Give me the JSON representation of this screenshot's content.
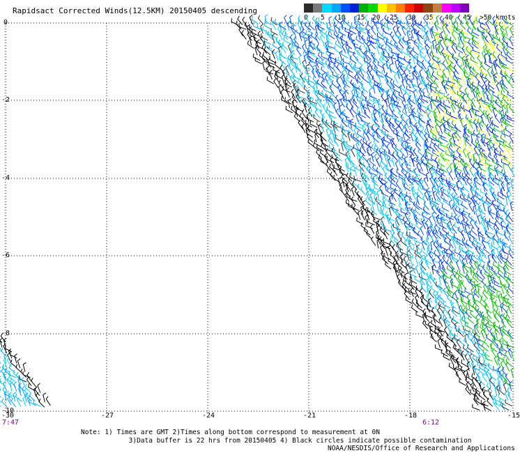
{
  "title": "Rapidsact Corrected Winds(12.5KM) 20150405 descending",
  "legend": {
    "colors": [
      "#2b2b2b",
      "#7a7a7a",
      "#00d8ff",
      "#00a8ff",
      "#0050ff",
      "#0020e0",
      "#00b000",
      "#00d800",
      "#ffff00",
      "#ffc000",
      "#ff8000",
      "#ff2000",
      "#d00000",
      "#8b4513",
      "#c08040",
      "#ff00ff",
      "#c000ff",
      "#8000c0"
    ],
    "labels": [
      "0",
      "5",
      "10",
      "15",
      "20",
      "25",
      "30",
      "35",
      "40",
      "45",
      ">50 knots"
    ]
  },
  "axes": {
    "y_ticks": [
      "0",
      "-2",
      "-4",
      "-6",
      "-8",
      "-10"
    ],
    "x_ticks": [
      "-30",
      "-27",
      "-24",
      "-21",
      "-18",
      "-15"
    ]
  },
  "times": {
    "left": "7:47",
    "right": "6:12"
  },
  "notes": {
    "line1": "Note: 1) Times are GMT 2)Times along bottom correspond to measurement at 0N",
    "line2": "3)Data buffer is 22 hrs from 20150405 4) Black circles indicate possible contamination"
  },
  "credit": "NOAA/NESDIS/Office of Research and Applications"
}
